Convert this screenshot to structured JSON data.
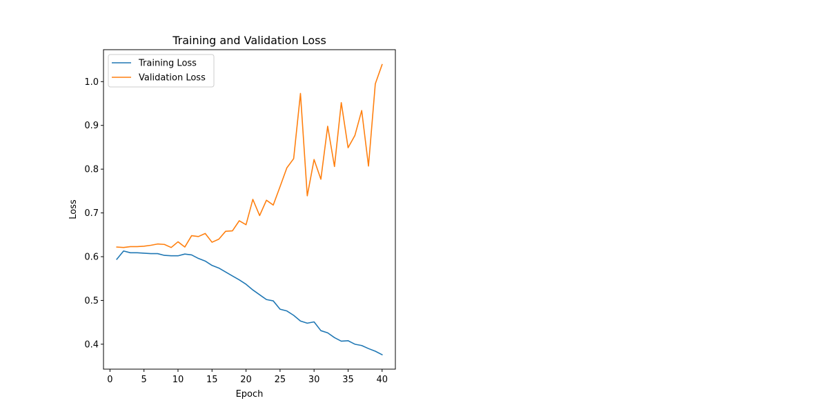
{
  "chart_data": {
    "type": "line",
    "title": "Training and Validation Loss",
    "xlabel": "Epoch",
    "ylabel": "Loss",
    "xlim": [
      -0.95,
      41.95
    ],
    "ylim": [
      0.343,
      1.073
    ],
    "xticks": [
      0,
      5,
      10,
      15,
      20,
      25,
      30,
      35,
      40
    ],
    "yticks": [
      0.4,
      0.5,
      0.6,
      0.7,
      0.8,
      0.9,
      1.0
    ],
    "ytick_labels": [
      "0.4",
      "0.5",
      "0.6",
      "0.7",
      "0.8",
      "0.9",
      "1.0"
    ],
    "grid": false,
    "legend_position": "upper-left",
    "x": [
      1,
      2,
      3,
      4,
      5,
      6,
      7,
      8,
      9,
      10,
      11,
      12,
      13,
      14,
      15,
      16,
      17,
      18,
      19,
      20,
      21,
      22,
      23,
      24,
      25,
      26,
      27,
      28,
      29,
      30,
      31,
      32,
      33,
      34,
      35,
      36,
      37,
      38,
      39,
      40
    ],
    "series": [
      {
        "name": "Training Loss",
        "color": "#1f77b4",
        "values": [
          0.594,
          0.613,
          0.609,
          0.609,
          0.608,
          0.607,
          0.607,
          0.603,
          0.602,
          0.602,
          0.606,
          0.604,
          0.596,
          0.59,
          0.58,
          0.574,
          0.565,
          0.556,
          0.547,
          0.537,
          0.524,
          0.513,
          0.502,
          0.499,
          0.48,
          0.476,
          0.466,
          0.453,
          0.448,
          0.451,
          0.431,
          0.426,
          0.415,
          0.407,
          0.408,
          0.4,
          0.397,
          0.39,
          0.384,
          0.376
        ]
      },
      {
        "name": "Validation Loss",
        "color": "#ff7f0e",
        "values": [
          0.622,
          0.621,
          0.623,
          0.623,
          0.624,
          0.626,
          0.629,
          0.628,
          0.621,
          0.634,
          0.622,
          0.648,
          0.646,
          0.653,
          0.633,
          0.64,
          0.658,
          0.659,
          0.682,
          0.673,
          0.731,
          0.694,
          0.729,
          0.718,
          0.76,
          0.803,
          0.824,
          0.973,
          0.739,
          0.822,
          0.777,
          0.898,
          0.806,
          0.952,
          0.849,
          0.877,
          0.934,
          0.807,
          0.995,
          1.039
        ]
      }
    ]
  }
}
